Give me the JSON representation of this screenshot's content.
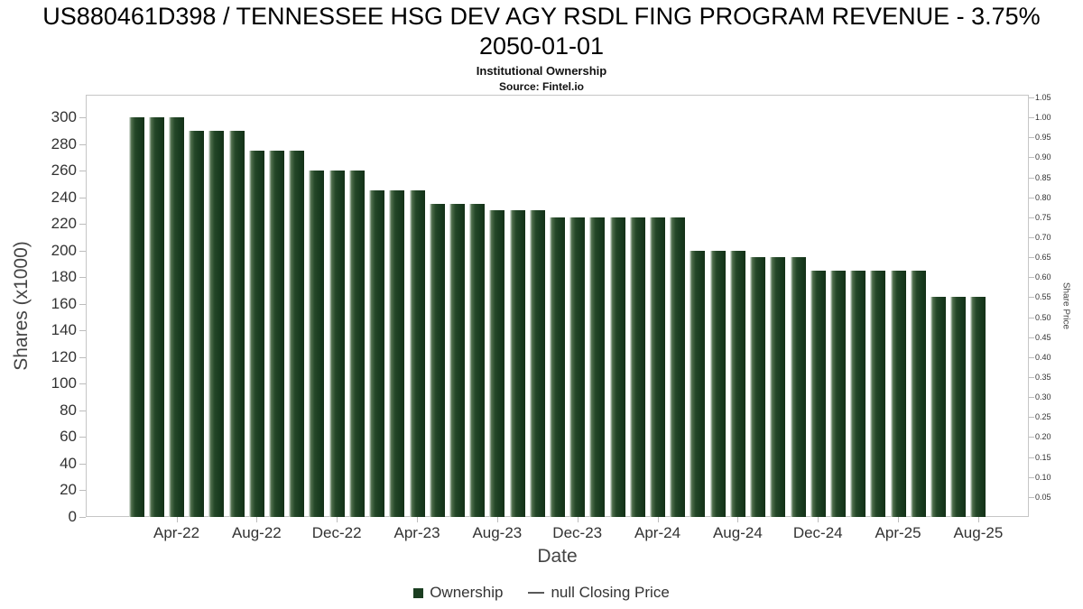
{
  "header": {
    "title": "US880461D398 / TENNESSEE HSG DEV AGY RSDL FING PROGRAM REVENUE - 3.75% 2050-01-01",
    "subtitle": "Institutional Ownership",
    "source": "Source: Fintel.io"
  },
  "legend": {
    "ownership_label": "Ownership",
    "price_label": "null Closing Price"
  },
  "colors": {
    "bar_green_dark": "#1b3e21",
    "bar_green_light": "#b4c4b5",
    "price_line_gray": "#5a5a5a",
    "axis_text": "#333333"
  },
  "chart_data": {
    "type": "bar",
    "title": "US880461D398 / TENNESSEE HSG DEV AGY RSDL FING PROGRAM REVENUE - 3.75% 2050-01-01",
    "subtitle": "Institutional Ownership",
    "source": "Source: Fintel.io",
    "xlabel": "Date",
    "ylabel_left": "Shares (x1000)",
    "ylabel_right": "Share Price",
    "ylim_left": [
      0,
      317
    ],
    "ylim_right": [
      0,
      1.0567
    ],
    "yticks_left": [
      0,
      20,
      40,
      60,
      80,
      100,
      120,
      140,
      160,
      180,
      200,
      220,
      240,
      260,
      280,
      300
    ],
    "yticks_right": [
      0.05,
      0.1,
      0.15,
      0.2,
      0.25,
      0.3,
      0.35,
      0.4,
      0.45,
      0.5,
      0.55,
      0.6,
      0.65,
      0.7,
      0.75,
      0.8,
      0.85,
      0.9,
      0.95,
      1.0,
      1.05
    ],
    "x_tick_labels": [
      "Apr-22",
      "Aug-22",
      "Dec-22",
      "Apr-23",
      "Aug-23",
      "Dec-23",
      "Apr-24",
      "Aug-24",
      "Dec-24",
      "Apr-25",
      "Aug-25"
    ],
    "categories": [
      "Feb-22",
      "Mar-22",
      "Apr-22",
      "May-22",
      "Jun-22",
      "Jul-22",
      "Aug-22",
      "Sep-22",
      "Oct-22",
      "Nov-22",
      "Dec-22",
      "Jan-23",
      "Feb-23",
      "Mar-23",
      "Apr-23",
      "May-23",
      "Jun-23",
      "Jul-23",
      "Aug-23",
      "Sep-23",
      "Oct-23",
      "Nov-23",
      "Dec-23",
      "Jan-24",
      "Feb-24",
      "Mar-24",
      "Apr-24",
      "May-24",
      "Jun-24",
      "Jul-24",
      "Aug-24",
      "Sep-24",
      "Oct-24",
      "Nov-24",
      "Dec-24",
      "Jan-25",
      "Feb-25",
      "Mar-25",
      "Apr-25",
      "May-25",
      "Jun-25",
      "Jul-25",
      "Aug-25"
    ],
    "series": [
      {
        "name": "Ownership",
        "type": "bar",
        "values": [
          300,
          300,
          300,
          290,
          290,
          290,
          275,
          275,
          275,
          260,
          260,
          260,
          245,
          245,
          245,
          235,
          235,
          235,
          230,
          230,
          230,
          225,
          225,
          225,
          225,
          225,
          225,
          225,
          200,
          200,
          200,
          195,
          195,
          195,
          185,
          185,
          185,
          185,
          185,
          185,
          165,
          165,
          165
        ]
      },
      {
        "name": "null Closing Price",
        "type": "line",
        "values": []
      }
    ],
    "legend_position": "bottom",
    "grid": false
  }
}
